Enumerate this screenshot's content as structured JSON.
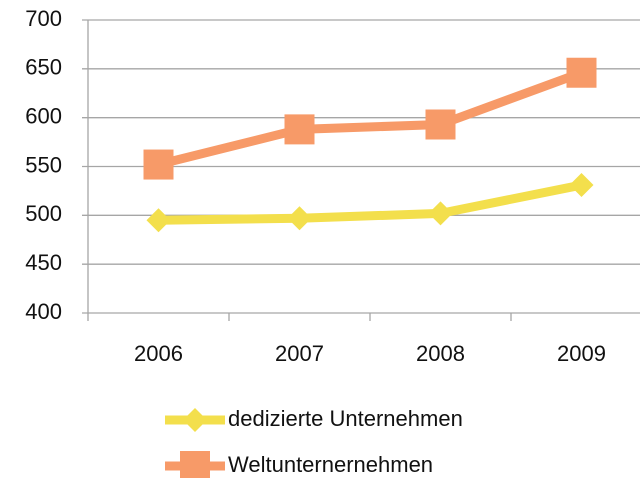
{
  "chart_data": {
    "type": "line",
    "categories": [
      "2006",
      "2007",
      "2008",
      "2009"
    ],
    "series": [
      {
        "name": "dedizierte Unternehmen",
        "color": "#f3df4c",
        "marker": "diamond",
        "values": [
          495,
          497,
          502,
          531
        ]
      },
      {
        "name": "Weltunternernehmen",
        "color": "#f79a68",
        "marker": "square",
        "values": [
          552,
          588,
          593,
          646
        ]
      }
    ],
    "ylim": [
      400,
      700
    ],
    "yticks": [
      400,
      450,
      500,
      550,
      600,
      650,
      700
    ],
    "grid": true,
    "legend": "bottom"
  }
}
